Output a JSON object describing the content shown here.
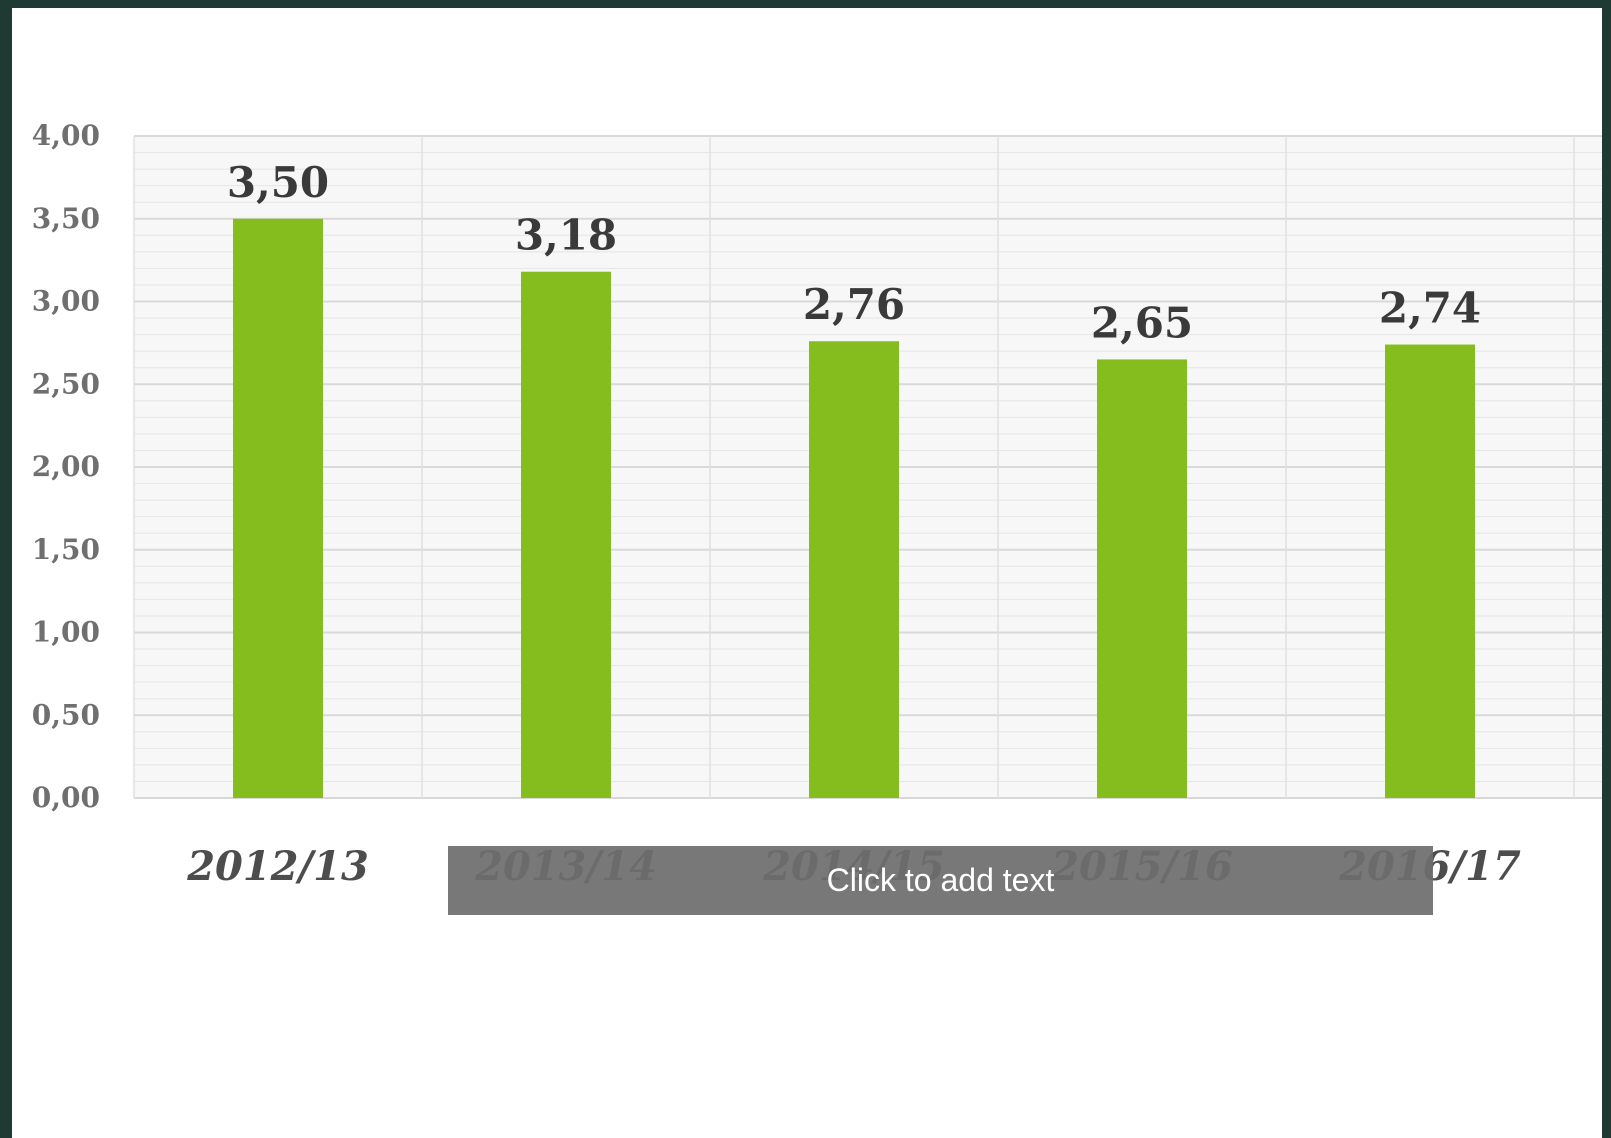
{
  "chart_data": {
    "type": "bar",
    "categories": [
      "2012/13",
      "2013/14",
      "2014/15",
      "2015/16",
      "2016/17"
    ],
    "values": [
      3.5,
      3.18,
      2.76,
      2.65,
      2.74
    ],
    "data_labels": [
      "3,50",
      "3,18",
      "2,76",
      "2,65",
      "2,74"
    ],
    "y_tick_labels": [
      "0,00",
      "0,50",
      "1,00",
      "1,50",
      "2,00",
      "2,50",
      "3,00",
      "3,50",
      "4,00"
    ],
    "ylim": [
      0,
      4
    ],
    "grid": true,
    "colors": {
      "bar": "#86bd1e"
    }
  },
  "overlay": {
    "placeholder": "Click to add text"
  }
}
